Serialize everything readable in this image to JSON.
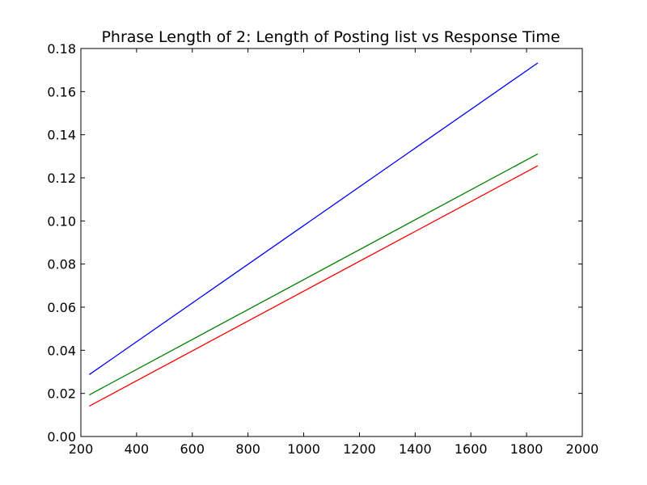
{
  "chart_data": {
    "type": "line",
    "title": "Phrase Length of 2: Length of Posting list vs Response Time",
    "xlabel": "",
    "ylabel": "",
    "xlim": [
      200,
      2000
    ],
    "ylim": [
      0.0,
      0.18
    ],
    "xticks": [
      200,
      400,
      600,
      800,
      1000,
      1200,
      1400,
      1600,
      1800,
      2000
    ],
    "xtick_labels": [
      "200",
      "400",
      "600",
      "800",
      "1000",
      "1200",
      "1400",
      "1600",
      "1800",
      "2000"
    ],
    "yticks": [
      0.0,
      0.02,
      0.04,
      0.06,
      0.08,
      0.1,
      0.12,
      0.14,
      0.16,
      0.18
    ],
    "ytick_labels": [
      "0.00",
      "0.02",
      "0.04",
      "0.06",
      "0.08",
      "0.10",
      "0.12",
      "0.14",
      "0.16",
      "0.18"
    ],
    "grid": false,
    "legend": "none",
    "series": [
      {
        "color": "#0000ff",
        "x": [
          230,
          1840
        ],
        "y": [
          0.0287,
          0.1733
        ]
      },
      {
        "color": "#008000",
        "x": [
          230,
          1840
        ],
        "y": [
          0.0193,
          0.1311
        ]
      },
      {
        "color": "#ff0000",
        "x": [
          230,
          1840
        ],
        "y": [
          0.0141,
          0.1256
        ]
      }
    ]
  }
}
